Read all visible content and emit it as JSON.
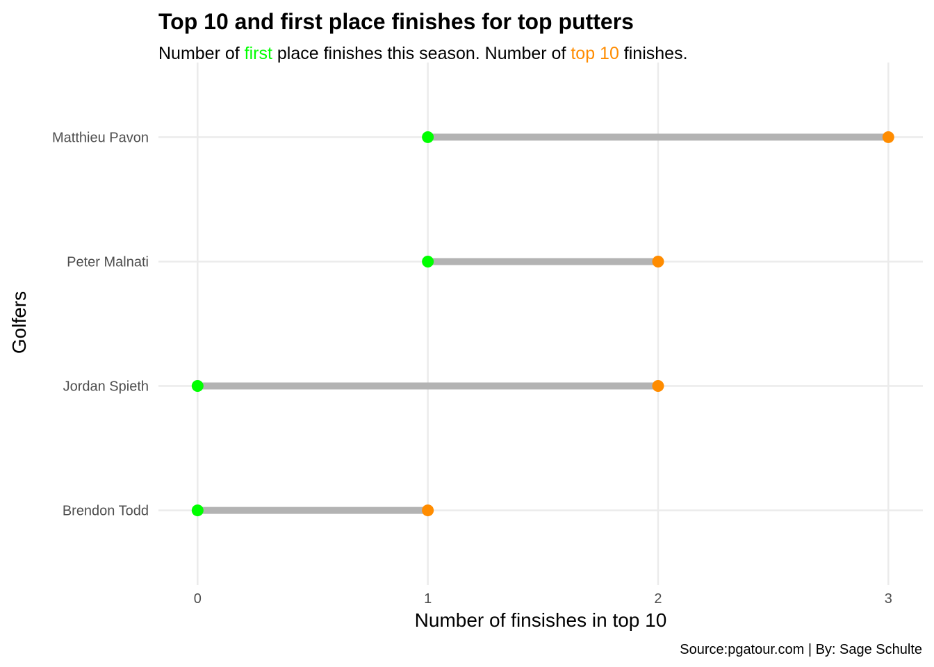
{
  "chart_data": {
    "type": "dumbbell",
    "title": "Top 10 and first place finishes for top putters",
    "subtitle": {
      "parts": [
        {
          "text": "Number of ",
          "color": "#000000"
        },
        {
          "text": "first",
          "color": "#00ff00"
        },
        {
          "text": " place finishes this season. Number of ",
          "color": "#000000"
        },
        {
          "text": "top 10",
          "color": "#ff8c00"
        },
        {
          "text": " finishes.",
          "color": "#000000"
        }
      ]
    },
    "xlabel": "Number of finsishes in top 10",
    "ylabel": "Golfers",
    "caption": "Source:pgatour.com | By: Sage Schulte",
    "xlim": [
      -0.17,
      3.15
    ],
    "x_ticks": [
      0,
      1,
      2,
      3
    ],
    "categories": [
      "Matthieu Pavon",
      "Peter Malnati",
      "Jordan Spieth",
      "Brendon Todd"
    ],
    "series": [
      {
        "name": "first",
        "color": "#00ff00",
        "values": [
          1,
          1,
          0,
          0
        ]
      },
      {
        "name": "top 10",
        "color": "#ff8c00",
        "values": [
          3,
          2,
          2,
          1
        ]
      }
    ],
    "segment_color": "#b3b3b3",
    "grid": true,
    "legend": "none"
  }
}
